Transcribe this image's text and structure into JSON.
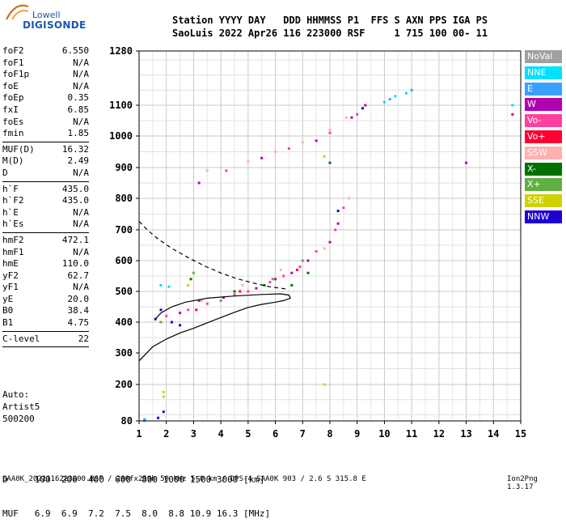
{
  "logo": {
    "line1": "Lowell",
    "line2": "DIGISONDE"
  },
  "header": {
    "line1": "Station YYYY DAY   DDD HHMMSS P1  FFS S AXN PPS IGA PS",
    "line2": "SaoLuis 2022 Apr26 116 223000 RSF     1 715 100 00- 11"
  },
  "params_group1": [
    {
      "name": "foF2",
      "value": "6.550"
    },
    {
      "name": "foF1",
      "value": "N/A"
    },
    {
      "name": "foF1p",
      "value": "N/A"
    },
    {
      "name": "foE",
      "value": "N/A"
    },
    {
      "name": "foEp",
      "value": "0.35"
    },
    {
      "name": "fxI",
      "value": "6.85"
    },
    {
      "name": "foEs",
      "value": "N/A"
    },
    {
      "name": "fmin",
      "value": "1.85"
    }
  ],
  "params_group2": [
    {
      "name": "MUF(D)",
      "value": "16.32"
    },
    {
      "name": "M(D)",
      "value": "2.49"
    },
    {
      "name": "D",
      "value": "N/A"
    }
  ],
  "params_group3": [
    {
      "name": "h`F",
      "value": "435.0"
    },
    {
      "name": "h`F2",
      "value": "435.0"
    },
    {
      "name": "h`E",
      "value": "N/A"
    },
    {
      "name": "h`Es",
      "value": "N/A"
    }
  ],
  "params_group4": [
    {
      "name": "hmF2",
      "value": "472.1"
    },
    {
      "name": "hmF1",
      "value": "N/A"
    },
    {
      "name": "hmE",
      "value": "110.0"
    },
    {
      "name": "yF2",
      "value": "62.7"
    },
    {
      "name": "yF1",
      "value": "N/A"
    },
    {
      "name": "yE",
      "value": "20.0"
    },
    {
      "name": "B0",
      "value": "38.4"
    },
    {
      "name": "B1",
      "value": "4.75"
    }
  ],
  "params_group5": [
    {
      "name": "C-level",
      "value": "22"
    }
  ],
  "auto_block": {
    "line1": "Auto:",
    "line2": "Artist5",
    "line3": "500200"
  },
  "bottom_table": {
    "row1": "D     100  200  400  600  800 1000 1500 3000 [km]",
    "row2": "MUF   6.9  6.9  7.2  7.5  8.0  8.8 10.9 16.3 [MHz]"
  },
  "footer": {
    "left": "SAA0K_2022116223000.RSF / 280fx256h 50 kHz 5.0 km / DPS-4 SAA0K 903 / 2.6 S 315.8 E",
    "right": "Ion2Png 1.3.17"
  },
  "legend": [
    {
      "label": "NoVal",
      "color": "#a0a0a0"
    },
    {
      "label": "NNE",
      "color": "#00e0ff"
    },
    {
      "label": "E",
      "color": "#3aa0ff"
    },
    {
      "label": "W",
      "color": "#b000b0"
    },
    {
      "label": "Vo-",
      "color": "#ff40a0"
    },
    {
      "label": "Vo+",
      "color": "#ff0030"
    },
    {
      "label": "SSW",
      "color": "#ffb0b0"
    },
    {
      "label": "X-",
      "color": "#007000"
    },
    {
      "label": "X+",
      "color": "#60b040"
    },
    {
      "label": "SSE",
      "color": "#d0d000"
    },
    {
      "label": "NNW",
      "color": "#2000d0"
    }
  ],
  "chart_data": {
    "type": "scatter",
    "xlim": [
      1,
      15
    ],
    "ylim": [
      80,
      1280
    ],
    "x_ticks": [
      1,
      2,
      3,
      4,
      5,
      6,
      7,
      8,
      9,
      10,
      11,
      12,
      13,
      14,
      15
    ],
    "y_tick_labels": [
      80,
      200,
      300,
      400,
      500,
      600,
      700,
      800,
      900,
      1000,
      1100,
      1280
    ],
    "grid": true,
    "series": [
      {
        "name": "W",
        "color": "#b000b0",
        "points": [
          [
            2.5,
            430
          ],
          [
            3.2,
            470
          ],
          [
            4.1,
            480
          ],
          [
            5.3,
            510
          ],
          [
            6.0,
            540
          ],
          [
            6.6,
            560
          ],
          [
            7.2,
            600
          ],
          [
            8.0,
            660
          ],
          [
            8.3,
            720
          ],
          [
            3.2,
            850
          ],
          [
            5.5,
            930
          ],
          [
            7.5,
            985
          ],
          [
            8.8,
            1060
          ],
          [
            9.3,
            1100
          ],
          [
            13.0,
            915
          ]
        ]
      },
      {
        "name": "Vo-",
        "color": "#ff40a0",
        "points": [
          [
            2.0,
            420
          ],
          [
            2.8,
            440
          ],
          [
            3.5,
            460
          ],
          [
            4.5,
            490
          ],
          [
            5.0,
            500
          ],
          [
            5.8,
            530
          ],
          [
            6.3,
            550
          ],
          [
            6.9,
            580
          ],
          [
            7.5,
            630
          ],
          [
            8.2,
            700
          ],
          [
            8.5,
            770
          ],
          [
            4.2,
            890
          ],
          [
            6.5,
            960
          ],
          [
            8.0,
            1010
          ],
          [
            9.0,
            1070
          ]
        ]
      },
      {
        "name": "Vo+",
        "color": "#ff0030",
        "points": [
          [
            3.1,
            440
          ],
          [
            4.7,
            500
          ],
          [
            6.8,
            570
          ],
          [
            14.7,
            1070
          ]
        ]
      },
      {
        "name": "SSW",
        "color": "#ffb0b0",
        "points": [
          [
            3.3,
            470
          ],
          [
            4.8,
            520
          ],
          [
            6.2,
            570
          ],
          [
            7.8,
            640
          ],
          [
            8.7,
            800
          ],
          [
            3.5,
            890
          ],
          [
            5.0,
            920
          ],
          [
            6.0,
            950
          ],
          [
            7.0,
            980
          ],
          [
            8.0,
            1020
          ],
          [
            8.6,
            1060
          ]
        ]
      },
      {
        "name": "NNW",
        "color": "#2000d0",
        "points": [
          [
            1.6,
            410
          ],
          [
            1.8,
            440
          ],
          [
            2.2,
            400
          ],
          [
            2.5,
            390
          ],
          [
            1.7,
            90
          ],
          [
            1.9,
            110
          ],
          [
            8.3,
            760
          ],
          [
            9.2,
            1090
          ],
          [
            1.2,
            82
          ]
        ]
      },
      {
        "name": "NNE",
        "color": "#00e0ff",
        "points": [
          [
            1.8,
            520
          ],
          [
            2.1,
            515
          ],
          [
            10.0,
            1110
          ],
          [
            10.4,
            1130
          ],
          [
            10.8,
            1140
          ],
          [
            14.7,
            1100
          ]
        ]
      },
      {
        "name": "E",
        "color": "#3aa0ff",
        "points": [
          [
            10.2,
            1120
          ],
          [
            11.0,
            1150
          ],
          [
            1.2,
            85
          ]
        ]
      },
      {
        "name": "X-",
        "color": "#007000",
        "points": [
          [
            2.9,
            540
          ],
          [
            4.5,
            500
          ],
          [
            5.6,
            520
          ],
          [
            6.6,
            520
          ],
          [
            7.2,
            560
          ],
          [
            8.0,
            915
          ]
        ]
      },
      {
        "name": "X+",
        "color": "#60b040",
        "points": [
          [
            3.0,
            560
          ],
          [
            4.0,
            470
          ],
          [
            5.9,
            540
          ],
          [
            7.0,
            600
          ],
          [
            1.8,
            400
          ]
        ]
      },
      {
        "name": "SSE",
        "color": "#d0d000",
        "points": [
          [
            1.9,
            160
          ],
          [
            1.9,
            175
          ],
          [
            2.8,
            520
          ],
          [
            7.8,
            200
          ],
          [
            7.8,
            935
          ]
        ]
      }
    ],
    "profile_solid": [
      [
        1,
        275
      ],
      [
        1.5,
        320
      ],
      [
        2,
        345
      ],
      [
        2.5,
        365
      ],
      [
        3,
        380
      ],
      [
        3.5,
        398
      ],
      [
        4,
        415
      ],
      [
        4.5,
        432
      ],
      [
        5,
        448
      ],
      [
        5.5,
        458
      ],
      [
        6,
        465
      ],
      [
        6.3,
        470
      ],
      [
        6.55,
        478
      ],
      [
        6.5,
        488
      ],
      [
        6.2,
        492
      ],
      [
        5.5,
        490
      ],
      [
        4.5,
        485
      ],
      [
        3.5,
        478
      ],
      [
        2.7,
        465
      ],
      [
        2.2,
        450
      ],
      [
        1.8,
        430
      ],
      [
        1.6,
        410
      ]
    ],
    "profile_dashed": [
      [
        1,
        727
      ],
      [
        1.3,
        700
      ],
      [
        1.7,
        670
      ],
      [
        2.2,
        640
      ],
      [
        2.8,
        610
      ],
      [
        3.4,
        583
      ],
      [
        4,
        560
      ],
      [
        4.6,
        541
      ],
      [
        5.2,
        527
      ],
      [
        5.8,
        515
      ],
      [
        6.4,
        508
      ]
    ]
  }
}
